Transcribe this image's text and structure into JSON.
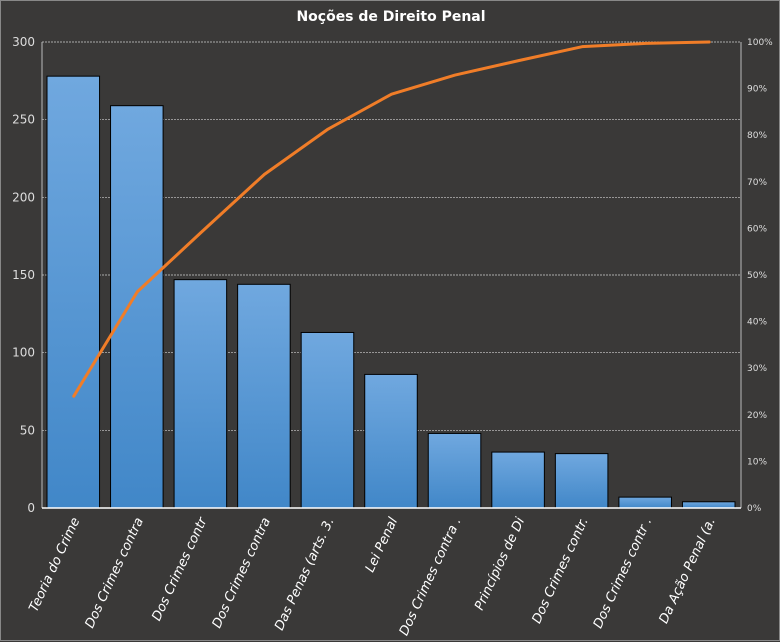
{
  "chart_data": {
    "type": "bar",
    "title": "Noções de Direito  Penal",
    "categories": [
      "Teoria do Crime",
      "Dos Crimes contra",
      "Dos Crimes contr",
      "Dos Crimes contra",
      "Das Penas (arts. 3.",
      "Lei Penal",
      "Dos Crimes contra .",
      "Princípios de Di",
      "Dos Crimes contr.",
      "Dos Crimes contr .",
      "Da Ação Penal (a."
    ],
    "values": [
      278,
      259,
      147,
      144,
      113,
      86,
      48,
      36,
      35,
      7,
      4
    ],
    "cumulative_percent": [
      24.0,
      46.4,
      59.1,
      71.6,
      81.3,
      88.8,
      92.9,
      96.0,
      99.0,
      99.7,
      100
    ],
    "ylim": [
      0,
      300
    ],
    "yticks": [
      "0",
      "50",
      "100",
      "150",
      "200",
      "250",
      "300"
    ],
    "y2lim": [
      0,
      100
    ],
    "y2ticks": [
      "0%",
      "10%",
      "20%",
      "30%",
      "40%",
      "50%",
      "60%",
      "70%",
      "80%",
      "90%",
      "100%"
    ],
    "grid": true,
    "colors": {
      "bar_top": "#70a8df",
      "bar_bottom": "#4187c8",
      "line": "#f07d28",
      "background": "#3a3938"
    }
  }
}
